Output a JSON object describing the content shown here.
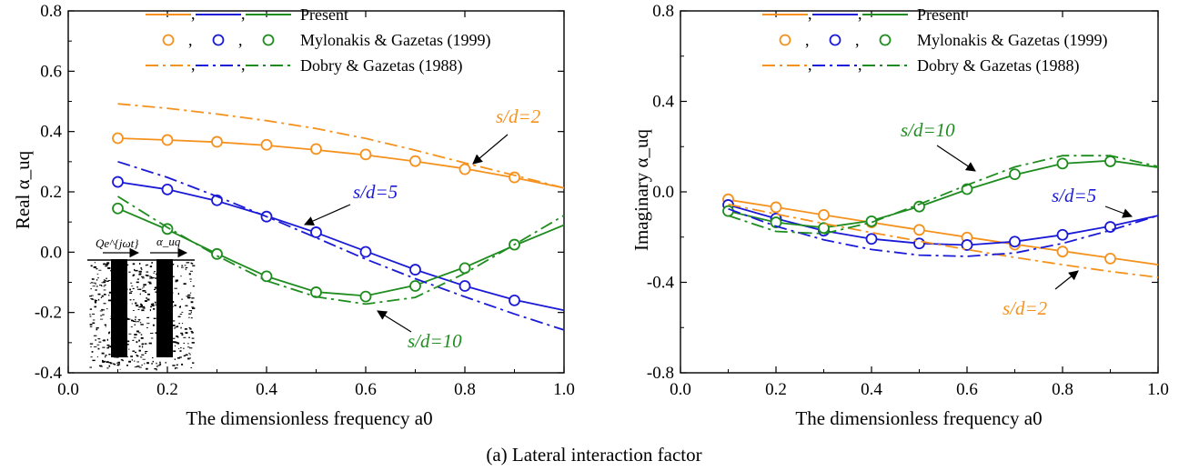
{
  "figure_caption": "(a) Lateral interaction factor",
  "colors": {
    "orange": "#f5921e",
    "blue": "#1a1ad6",
    "green": "#1e8c1e",
    "black": "#000000"
  },
  "chart_data": [
    {
      "type": "line",
      "ylabel": "Real α_uq",
      "xlabel": "The dimensionless frequency a0",
      "xlim": [
        0.0,
        1.0
      ],
      "ylim": [
        -0.4,
        0.8
      ],
      "xticks": [
        "0.0",
        "0.2",
        "0.4",
        "0.6",
        "0.8",
        "1.0"
      ],
      "yticks": [
        "-0.4",
        "-0.2",
        "0.0",
        "0.2",
        "0.4",
        "0.6",
        "0.8"
      ],
      "grid": false,
      "legend_position": "top",
      "legend": [
        "Present",
        "Mylonakis & Gazetas (1999)",
        "Dobry & Gazetas (1988)"
      ],
      "inset": {
        "load_label": "Qe^{jωt}",
        "response_label": "α_uq"
      },
      "annotations": [
        {
          "text": "s/d=2",
          "color": "orange"
        },
        {
          "text": "s/d=5",
          "color": "blue"
        },
        {
          "text": "s/d=10",
          "color": "green"
        }
      ],
      "series": [
        {
          "case": "s/d=2",
          "method": "Present",
          "color": "orange",
          "style": "solid",
          "x": [
            0.1,
            0.2,
            0.3,
            0.4,
            0.5,
            0.6,
            0.7,
            0.8,
            0.9,
            1.0
          ],
          "y": [
            0.378,
            0.372,
            0.365,
            0.354,
            0.339,
            0.322,
            0.301,
            0.277,
            0.247,
            0.213
          ]
        },
        {
          "case": "s/d=5",
          "method": "Present",
          "color": "blue",
          "style": "solid",
          "x": [
            0.1,
            0.2,
            0.3,
            0.4,
            0.5,
            0.6,
            0.7,
            0.8,
            0.9,
            1.0
          ],
          "y": [
            0.233,
            0.208,
            0.17,
            0.12,
            0.065,
            0.003,
            -0.058,
            -0.112,
            -0.158,
            -0.193
          ]
        },
        {
          "case": "s/d=10",
          "method": "Present",
          "color": "green",
          "style": "solid",
          "x": [
            0.1,
            0.2,
            0.3,
            0.4,
            0.5,
            0.6,
            0.7,
            0.8,
            0.9,
            1.0
          ],
          "y": [
            0.145,
            0.075,
            -0.005,
            -0.08,
            -0.132,
            -0.145,
            -0.11,
            -0.05,
            0.022,
            0.09
          ]
        },
        {
          "case": "s/d=2",
          "method": "Mylonakis & Gazetas (1999)",
          "color": "orange",
          "style": "circle",
          "x": [
            0.1,
            0.2,
            0.3,
            0.4,
            0.5,
            0.6,
            0.7,
            0.8,
            0.9
          ],
          "y": [
            0.378,
            0.372,
            0.366,
            0.356,
            0.342,
            0.324,
            0.302,
            0.275,
            0.248
          ]
        },
        {
          "case": "s/d=5",
          "method": "Mylonakis & Gazetas (1999)",
          "color": "blue",
          "style": "circle",
          "x": [
            0.1,
            0.2,
            0.3,
            0.4,
            0.5,
            0.6,
            0.7,
            0.8,
            0.9
          ],
          "y": [
            0.233,
            0.208,
            0.172,
            0.118,
            0.066,
            0.001,
            -0.058,
            -0.112,
            -0.16
          ]
        },
        {
          "case": "s/d=10",
          "method": "Mylonakis & Gazetas (1999)",
          "color": "green",
          "style": "circle",
          "x": [
            0.1,
            0.2,
            0.3,
            0.4,
            0.5,
            0.6,
            0.7,
            0.8,
            0.9
          ],
          "y": [
            0.145,
            0.077,
            -0.006,
            -0.08,
            -0.133,
            -0.147,
            -0.112,
            -0.053,
            0.025
          ]
        },
        {
          "case": "s/d=2",
          "method": "Dobry & Gazetas (1988)",
          "color": "orange",
          "style": "dashdot",
          "x": [
            0.1,
            0.2,
            0.3,
            0.4,
            0.5,
            0.6,
            0.7,
            0.8,
            0.9,
            1.0
          ],
          "y": [
            0.492,
            0.477,
            0.458,
            0.436,
            0.41,
            0.377,
            0.338,
            0.296,
            0.255,
            0.213
          ]
        },
        {
          "case": "s/d=5",
          "method": "Dobry & Gazetas (1988)",
          "color": "blue",
          "style": "dashdot",
          "x": [
            0.1,
            0.2,
            0.3,
            0.4,
            0.5,
            0.6,
            0.7,
            0.8,
            0.9,
            1.0
          ],
          "y": [
            0.3,
            0.248,
            0.185,
            0.118,
            0.048,
            -0.023,
            -0.088,
            -0.148,
            -0.205,
            -0.258
          ]
        },
        {
          "case": "s/d=10",
          "method": "Dobry & Gazetas (1988)",
          "color": "green",
          "style": "dashdot",
          "x": [
            0.1,
            0.2,
            0.3,
            0.4,
            0.5,
            0.6,
            0.7,
            0.8,
            0.9,
            1.0
          ],
          "y": [
            0.185,
            0.082,
            -0.012,
            -0.095,
            -0.148,
            -0.172,
            -0.15,
            -0.07,
            0.025,
            0.122
          ]
        }
      ]
    },
    {
      "type": "line",
      "ylabel": "Imaginary α_uq",
      "xlabel": "The dimensionless frequency a0",
      "xlim": [
        0.0,
        1.0
      ],
      "ylim": [
        -0.8,
        0.8
      ],
      "xticks": [
        "0.0",
        "0.2",
        "0.4",
        "0.6",
        "0.8",
        "1.0"
      ],
      "yticks": [
        "-0.8",
        "-0.4",
        "0.0",
        "0.4",
        "0.8"
      ],
      "grid": false,
      "legend_position": "top",
      "legend": [
        "Present",
        "Mylonakis & Gazetas (1999)",
        "Dobry & Gazetas (1988)"
      ],
      "annotations": [
        {
          "text": "s/d=10",
          "color": "green"
        },
        {
          "text": "s/d=5",
          "color": "blue"
        },
        {
          "text": "s/d=2",
          "color": "orange"
        }
      ],
      "series": [
        {
          "case": "s/d=2",
          "method": "Present",
          "color": "orange",
          "style": "solid",
          "x": [
            0.1,
            0.2,
            0.3,
            0.4,
            0.5,
            0.6,
            0.7,
            0.8,
            0.9,
            1.0
          ],
          "y": [
            -0.035,
            -0.068,
            -0.102,
            -0.135,
            -0.168,
            -0.2,
            -0.232,
            -0.262,
            -0.292,
            -0.322
          ]
        },
        {
          "case": "s/d=5",
          "method": "Present",
          "color": "blue",
          "style": "solid",
          "x": [
            0.1,
            0.2,
            0.3,
            0.4,
            0.5,
            0.6,
            0.7,
            0.8,
            0.9,
            1.0
          ],
          "y": [
            -0.058,
            -0.118,
            -0.172,
            -0.208,
            -0.228,
            -0.235,
            -0.22,
            -0.19,
            -0.152,
            -0.105
          ]
        },
        {
          "case": "s/d=10",
          "method": "Present",
          "color": "green",
          "style": "solid",
          "x": [
            0.1,
            0.2,
            0.3,
            0.4,
            0.5,
            0.6,
            0.7,
            0.8,
            0.9,
            1.0
          ],
          "y": [
            -0.085,
            -0.135,
            -0.158,
            -0.128,
            -0.065,
            0.01,
            0.075,
            0.125,
            0.138,
            0.108
          ]
        },
        {
          "case": "s/d=2",
          "method": "Mylonakis & Gazetas (1999)",
          "color": "orange",
          "style": "circle",
          "x": [
            0.1,
            0.2,
            0.3,
            0.4,
            0.5,
            0.6,
            0.7,
            0.8,
            0.9
          ],
          "y": [
            -0.033,
            -0.068,
            -0.102,
            -0.135,
            -0.168,
            -0.202,
            -0.233,
            -0.264,
            -0.295
          ]
        },
        {
          "case": "s/d=5",
          "method": "Mylonakis & Gazetas (1999)",
          "color": "blue",
          "style": "circle",
          "x": [
            0.1,
            0.2,
            0.3,
            0.4,
            0.5,
            0.6,
            0.7,
            0.8,
            0.9
          ],
          "y": [
            -0.058,
            -0.118,
            -0.172,
            -0.208,
            -0.228,
            -0.235,
            -0.22,
            -0.19,
            -0.155
          ]
        },
        {
          "case": "s/d=10",
          "method": "Mylonakis & Gazetas (1999)",
          "color": "green",
          "style": "circle",
          "x": [
            0.1,
            0.2,
            0.3,
            0.4,
            0.5,
            0.6,
            0.7,
            0.8,
            0.9
          ],
          "y": [
            -0.085,
            -0.135,
            -0.16,
            -0.13,
            -0.065,
            0.012,
            0.078,
            0.125,
            0.135
          ]
        },
        {
          "case": "s/d=2",
          "method": "Dobry & Gazetas (1988)",
          "color": "orange",
          "style": "dashdot",
          "x": [
            0.1,
            0.2,
            0.3,
            0.4,
            0.5,
            0.6,
            0.7,
            0.8,
            0.9,
            1.0
          ],
          "y": [
            -0.055,
            -0.098,
            -0.14,
            -0.18,
            -0.218,
            -0.255,
            -0.29,
            -0.322,
            -0.352,
            -0.378
          ]
        },
        {
          "case": "s/d=5",
          "method": "Dobry & Gazetas (1988)",
          "color": "blue",
          "style": "dashdot",
          "x": [
            0.1,
            0.2,
            0.3,
            0.4,
            0.5,
            0.6,
            0.7,
            0.8,
            0.9,
            1.0
          ],
          "y": [
            -0.075,
            -0.152,
            -0.212,
            -0.255,
            -0.28,
            -0.285,
            -0.27,
            -0.228,
            -0.17,
            -0.105
          ]
        },
        {
          "case": "s/d=10",
          "method": "Dobry & Gazetas (1988)",
          "color": "green",
          "style": "dashdot",
          "x": [
            0.1,
            0.2,
            0.3,
            0.4,
            0.5,
            0.6,
            0.7,
            0.8,
            0.9,
            1.0
          ],
          "y": [
            -0.105,
            -0.175,
            -0.185,
            -0.135,
            -0.055,
            0.03,
            0.11,
            0.16,
            0.16,
            0.112
          ]
        }
      ]
    }
  ]
}
